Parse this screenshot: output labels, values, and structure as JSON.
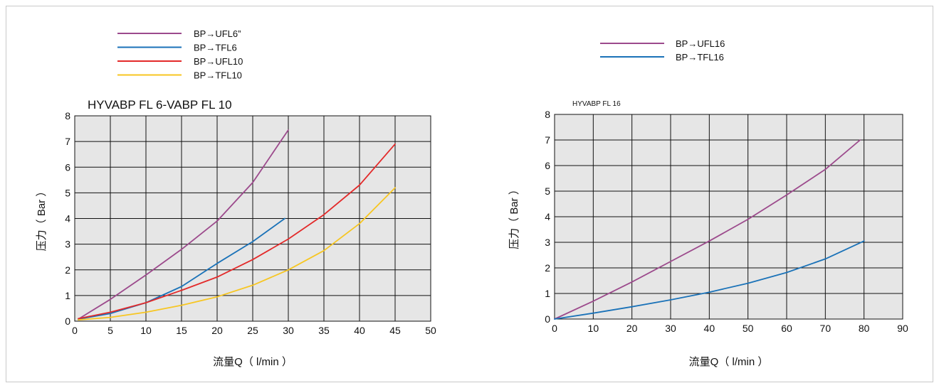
{
  "chart_data": [
    {
      "type": "line",
      "title": "HYVABP FL 6-VABP FL 10",
      "xlabel": "流量Q（ l/min ）",
      "ylabel": "压力（ Bar ）",
      "xlim": [
        0,
        50
      ],
      "ylim": [
        0,
        8
      ],
      "x_ticks": [
        "0",
        "5",
        "10",
        "15",
        "20",
        "25",
        "30",
        "35",
        "40",
        "45",
        "50"
      ],
      "y_ticks": [
        "0",
        "1",
        "2",
        "3",
        "4",
        "5",
        "6",
        "7",
        "8"
      ],
      "grid": true,
      "plot_background": "#e6e6e6",
      "legend_position": "top-left",
      "series": [
        {
          "name": "BP→UFL6”",
          "color": "#9c4a8c",
          "points": [
            [
              0.5,
              0.08
            ],
            [
              5,
              0.85
            ],
            [
              10,
              1.8
            ],
            [
              15,
              2.8
            ],
            [
              20,
              3.9
            ],
            [
              25,
              5.4
            ],
            [
              30,
              7.45
            ]
          ]
        },
        {
          "name": "BP→TFL6",
          "color": "#1a72b8",
          "points": [
            [
              0.5,
              0.08
            ],
            [
              5,
              0.3
            ],
            [
              10,
              0.72
            ],
            [
              15,
              1.35
            ],
            [
              20,
              2.25
            ],
            [
              25,
              3.1
            ],
            [
              29.5,
              4.0
            ]
          ]
        },
        {
          "name": "BP→UFL10",
          "color": "#e32a2a",
          "points": [
            [
              0.5,
              0.1
            ],
            [
              5,
              0.35
            ],
            [
              10,
              0.72
            ],
            [
              15,
              1.2
            ],
            [
              20,
              1.72
            ],
            [
              25,
              2.4
            ],
            [
              30,
              3.2
            ],
            [
              35,
              4.15
            ],
            [
              40,
              5.3
            ],
            [
              45,
              6.9
            ]
          ]
        },
        {
          "name": "BP→TFL10",
          "color": "#f7c622",
          "points": [
            [
              0.5,
              0.05
            ],
            [
              5,
              0.15
            ],
            [
              10,
              0.35
            ],
            [
              15,
              0.62
            ],
            [
              20,
              0.95
            ],
            [
              25,
              1.4
            ],
            [
              30,
              2.0
            ],
            [
              35,
              2.75
            ],
            [
              40,
              3.8
            ],
            [
              45,
              5.2
            ]
          ]
        }
      ]
    },
    {
      "type": "line",
      "title": "HYVABP FL 16",
      "xlabel": "流量Q（ l/min ）",
      "ylabel": "压力（ Bar ）",
      "xlim": [
        0,
        90
      ],
      "ylim": [
        0,
        8
      ],
      "x_ticks": [
        "0",
        "10",
        "20",
        "30",
        "40",
        "50",
        "60",
        "70",
        "80",
        "90"
      ],
      "y_ticks": [
        "0",
        "1",
        "2",
        "3",
        "4",
        "5",
        "6",
        "7",
        "8"
      ],
      "grid": true,
      "plot_background": "#e6e6e6",
      "legend_position": "top-right",
      "series": [
        {
          "name": "BP→UFL16",
          "color": "#9c4a8c",
          "points": [
            [
              0,
              0
            ],
            [
              10,
              0.7
            ],
            [
              20,
              1.45
            ],
            [
              30,
              2.25
            ],
            [
              40,
              3.05
            ],
            [
              50,
              3.9
            ],
            [
              60,
              4.85
            ],
            [
              70,
              5.85
            ],
            [
              79,
              7.0
            ]
          ]
        },
        {
          "name": "BP→TFL16",
          "color": "#1a72b8",
          "points": [
            [
              0,
              0
            ],
            [
              10,
              0.23
            ],
            [
              20,
              0.48
            ],
            [
              30,
              0.75
            ],
            [
              40,
              1.05
            ],
            [
              50,
              1.4
            ],
            [
              60,
              1.82
            ],
            [
              70,
              2.35
            ],
            [
              80,
              3.05
            ]
          ]
        }
      ]
    }
  ]
}
